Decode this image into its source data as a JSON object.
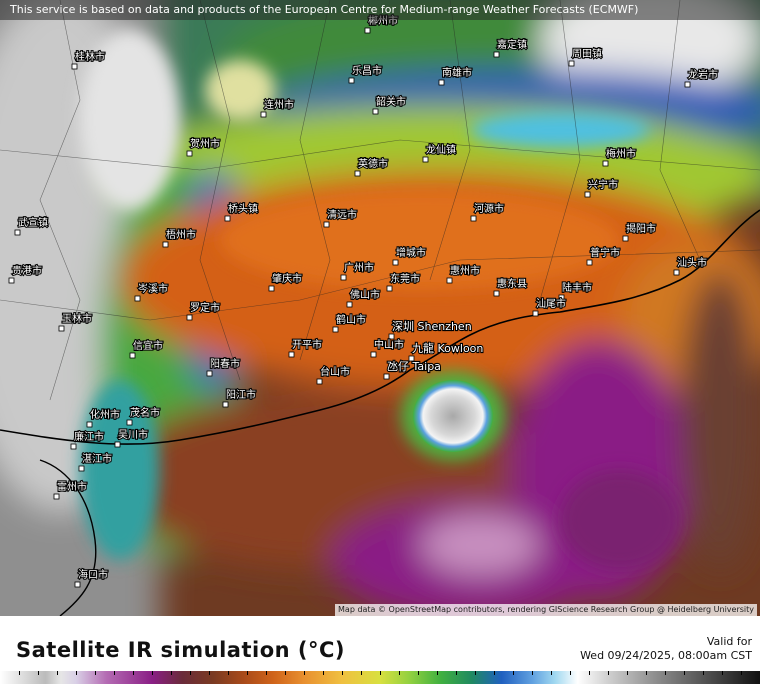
{
  "header": {
    "banner": "This service is based on data and products of the European Centre for Medium-range Weather Forecasts (ECMWF)"
  },
  "map": {
    "attribution": "Map data © OpenStreetMap contributors, rendering GIScience Research Group @ Heidelberg University",
    "cities": [
      "郴州市",
      "桂林市",
      "乐昌市",
      "南雄市",
      "嘉定镇",
      "周田镇",
      "龙岩市",
      "韶关市",
      "连州市",
      "贺州市",
      "龙仙镇",
      "梅州市",
      "英德市",
      "兴宁市",
      "桥头镇",
      "清远市",
      "河源市",
      "揭阳市",
      "梧州市",
      "广州市",
      "增城市",
      "普宁市",
      "汕头市",
      "肇庆市",
      "东莞市",
      "惠州市",
      "惠东县",
      "陆丰市",
      "佛山市",
      "岑溪市",
      "罗定市",
      "鹤山市",
      "汕尾市",
      "深圳 Shenzhen",
      "开平市",
      "中山市",
      "九龍 Kowloon",
      "信宜市",
      "台山市",
      "阳春市",
      "氹仔 Taipa",
      "阳江市",
      "茂名市",
      "化州市",
      "廉江市",
      "吴川市",
      "湛江市",
      "雷州市",
      "海口市",
      "玉林市",
      "贵港市",
      "武宣镇"
    ]
  },
  "footer": {
    "title": "Satellite IR simulation (°C)",
    "valid_label": "Valid for",
    "valid_time": "Wed 09/24/2025, 08:00am CST"
  }
}
